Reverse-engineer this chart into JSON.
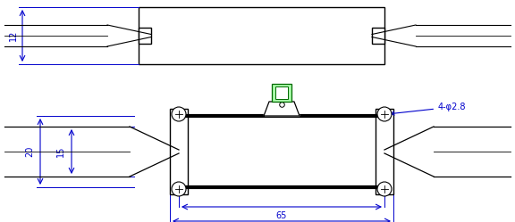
{
  "bg_color": "#ffffff",
  "blue": "#0000cc",
  "black": "#000000",
  "green_edge": "#006600",
  "green_face": "#aaffaa",
  "fig_width": 5.76,
  "fig_height": 2.49,
  "dpi": 100
}
